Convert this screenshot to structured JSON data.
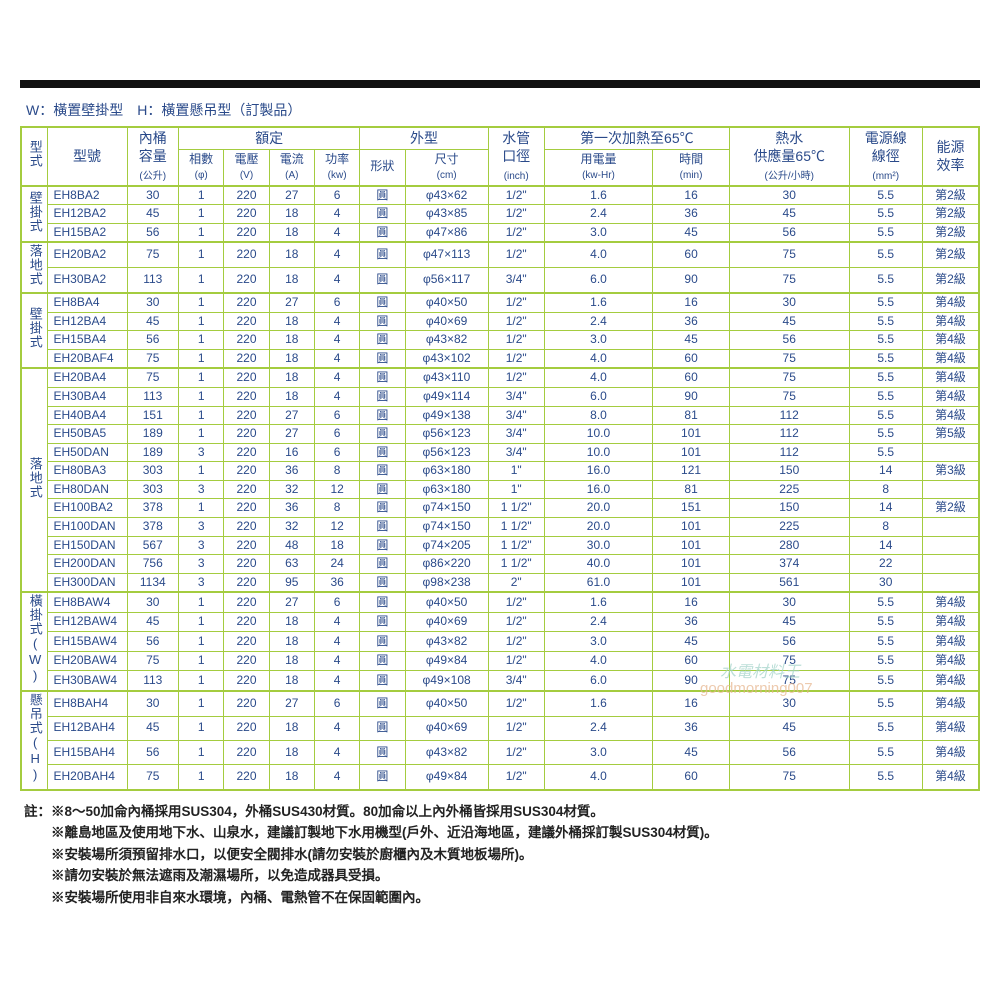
{
  "legend": "W：橫置壁掛型　H：橫置懸吊型（訂製品）",
  "colors": {
    "border": "#a4cc3f",
    "text": "#2a4a8a",
    "black_bar": "#111111",
    "note_text": "#222222"
  },
  "headers": {
    "type": "型式",
    "model": "型號",
    "capacity": "內桶\n容量",
    "capacity_unit": "(公升)",
    "rated": "額定",
    "phase": "相數",
    "phase_unit": "(φ)",
    "voltage": "電壓",
    "voltage_unit": "(V)",
    "current": "電流",
    "current_unit": "(A)",
    "power": "功率",
    "power_unit": "(kw)",
    "exterior": "外型",
    "shape": "形狀",
    "size": "尺寸",
    "size_unit": "(cm)",
    "pipe": "水管\n口徑",
    "pipe_unit": "(inch)",
    "first_heat": "第一次加熱至65℃",
    "energy_use": "用電量",
    "energy_use_unit": "(kw-Hr)",
    "time": "時間",
    "time_unit": "(min)",
    "hot_water": "熱水\n供應量65℃",
    "hot_water_unit": "(公升/小時)",
    "wire": "電源線\n線徑",
    "wire_unit": "(mm²)",
    "efficiency": "能源\n效率"
  },
  "groups": [
    {
      "label": "壁掛式",
      "rows": [
        [
          "EH8BA2",
          "30",
          "1",
          "220",
          "27",
          "6",
          "圓",
          "φ43×62",
          "1/2\"",
          "1.6",
          "16",
          "30",
          "5.5",
          "第2級"
        ],
        [
          "EH12BA2",
          "45",
          "1",
          "220",
          "18",
          "4",
          "圓",
          "φ43×85",
          "1/2\"",
          "2.4",
          "36",
          "45",
          "5.5",
          "第2級"
        ],
        [
          "EH15BA2",
          "56",
          "1",
          "220",
          "18",
          "4",
          "圓",
          "φ47×86",
          "1/2\"",
          "3.0",
          "45",
          "56",
          "5.5",
          "第2級"
        ]
      ]
    },
    {
      "label": "落地式",
      "rows": [
        [
          "EH20BA2",
          "75",
          "1",
          "220",
          "18",
          "4",
          "圓",
          "φ47×113",
          "1/2\"",
          "4.0",
          "60",
          "75",
          "5.5",
          "第2級"
        ],
        [
          "EH30BA2",
          "113",
          "1",
          "220",
          "18",
          "4",
          "圓",
          "φ56×117",
          "3/4\"",
          "6.0",
          "90",
          "75",
          "5.5",
          "第2級"
        ]
      ]
    },
    {
      "label": "壁掛式",
      "rows": [
        [
          "EH8BA4",
          "30",
          "1",
          "220",
          "27",
          "6",
          "圓",
          "φ40×50",
          "1/2\"",
          "1.6",
          "16",
          "30",
          "5.5",
          "第4級"
        ],
        [
          "EH12BA4",
          "45",
          "1",
          "220",
          "18",
          "4",
          "圓",
          "φ40×69",
          "1/2\"",
          "2.4",
          "36",
          "45",
          "5.5",
          "第4級"
        ],
        [
          "EH15BA4",
          "56",
          "1",
          "220",
          "18",
          "4",
          "圓",
          "φ43×82",
          "1/2\"",
          "3.0",
          "45",
          "56",
          "5.5",
          "第4級"
        ],
        [
          "EH20BAF4",
          "75",
          "1",
          "220",
          "18",
          "4",
          "圓",
          "φ43×102",
          "1/2\"",
          "4.0",
          "60",
          "75",
          "5.5",
          "第4級"
        ]
      ]
    },
    {
      "label": "落地式",
      "rows": [
        [
          "EH20BA4",
          "75",
          "1",
          "220",
          "18",
          "4",
          "圓",
          "φ43×110",
          "1/2\"",
          "4.0",
          "60",
          "75",
          "5.5",
          "第4級"
        ],
        [
          "EH30BA4",
          "113",
          "1",
          "220",
          "18",
          "4",
          "圓",
          "φ49×114",
          "3/4\"",
          "6.0",
          "90",
          "75",
          "5.5",
          "第4級"
        ],
        [
          "EH40BA4",
          "151",
          "1",
          "220",
          "27",
          "6",
          "圓",
          "φ49×138",
          "3/4\"",
          "8.0",
          "81",
          "112",
          "5.5",
          "第4級"
        ],
        [
          "EH50BA5",
          "189",
          "1",
          "220",
          "27",
          "6",
          "圓",
          "φ56×123",
          "3/4\"",
          "10.0",
          "101",
          "112",
          "5.5",
          "第5級"
        ],
        [
          "EH50DAN",
          "189",
          "3",
          "220",
          "16",
          "6",
          "圓",
          "φ56×123",
          "3/4\"",
          "10.0",
          "101",
          "112",
          "5.5",
          ""
        ],
        [
          "EH80BA3",
          "303",
          "1",
          "220",
          "36",
          "8",
          "圓",
          "φ63×180",
          "1\"",
          "16.0",
          "121",
          "150",
          "14",
          "第3級"
        ],
        [
          "EH80DAN",
          "303",
          "3",
          "220",
          "32",
          "12",
          "圓",
          "φ63×180",
          "1\"",
          "16.0",
          "81",
          "225",
          "8",
          ""
        ],
        [
          "EH100BA2",
          "378",
          "1",
          "220",
          "36",
          "8",
          "圓",
          "φ74×150",
          "1 1/2\"",
          "20.0",
          "151",
          "150",
          "14",
          "第2級"
        ],
        [
          "EH100DAN",
          "378",
          "3",
          "220",
          "32",
          "12",
          "圓",
          "φ74×150",
          "1 1/2\"",
          "20.0",
          "101",
          "225",
          "8",
          ""
        ],
        [
          "EH150DAN",
          "567",
          "3",
          "220",
          "48",
          "18",
          "圓",
          "φ74×205",
          "1 1/2\"",
          "30.0",
          "101",
          "280",
          "14",
          ""
        ],
        [
          "EH200DAN",
          "756",
          "3",
          "220",
          "63",
          "24",
          "圓",
          "φ86×220",
          "1 1/2\"",
          "40.0",
          "101",
          "374",
          "22",
          ""
        ],
        [
          "EH300DAN",
          "1134",
          "3",
          "220",
          "95",
          "36",
          "圓",
          "φ98×238",
          "2\"",
          "61.0",
          "101",
          "561",
          "30",
          ""
        ]
      ]
    },
    {
      "label": "橫掛式(W)",
      "rows": [
        [
          "EH8BAW4",
          "30",
          "1",
          "220",
          "27",
          "6",
          "圓",
          "φ40×50",
          "1/2\"",
          "1.6",
          "16",
          "30",
          "5.5",
          "第4級"
        ],
        [
          "EH12BAW4",
          "45",
          "1",
          "220",
          "18",
          "4",
          "圓",
          "φ40×69",
          "1/2\"",
          "2.4",
          "36",
          "45",
          "5.5",
          "第4級"
        ],
        [
          "EH15BAW4",
          "56",
          "1",
          "220",
          "18",
          "4",
          "圓",
          "φ43×82",
          "1/2\"",
          "3.0",
          "45",
          "56",
          "5.5",
          "第4級"
        ],
        [
          "EH20BAW4",
          "75",
          "1",
          "220",
          "18",
          "4",
          "圓",
          "φ49×84",
          "1/2\"",
          "4.0",
          "60",
          "75",
          "5.5",
          "第4級"
        ],
        [
          "EH30BAW4",
          "113",
          "1",
          "220",
          "18",
          "4",
          "圓",
          "φ49×108",
          "3/4\"",
          "6.0",
          "90",
          "75",
          "5.5",
          "第4級"
        ]
      ]
    },
    {
      "label": "懸吊式(H)",
      "rows": [
        [
          "EH8BAH4",
          "30",
          "1",
          "220",
          "27",
          "6",
          "圓",
          "φ40×50",
          "1/2\"",
          "1.6",
          "16",
          "30",
          "5.5",
          "第4級"
        ],
        [
          "EH12BAH4",
          "45",
          "1",
          "220",
          "18",
          "4",
          "圓",
          "φ40×69",
          "1/2\"",
          "2.4",
          "36",
          "45",
          "5.5",
          "第4級"
        ],
        [
          "EH15BAH4",
          "56",
          "1",
          "220",
          "18",
          "4",
          "圓",
          "φ43×82",
          "1/2\"",
          "3.0",
          "45",
          "56",
          "5.5",
          "第4級"
        ],
        [
          "EH20BAH4",
          "75",
          "1",
          "220",
          "18",
          "4",
          "圓",
          "φ49×84",
          "1/2\"",
          "4.0",
          "60",
          "75",
          "5.5",
          "第4級"
        ]
      ]
    }
  ],
  "notes": [
    "註：※8～50加侖內桶採用SUS304，外桶SUS430材質。80加侖以上內外桶皆採用SUS304材質。",
    "　　※離島地區及使用地下水、山泉水，建議訂製地下水用機型(戶外、近沿海地區，建議外桶採訂製SUS304材質)。",
    "　　※安裝場所須預留排水口，以便安全閥排水(請勿安裝於廚櫃內及木質地板場所)。",
    "　　※請勿安裝於無法遮雨及潮濕場所，以免造成器具受損。",
    "　　※安裝場所使用非自來水環境，內桶、電熱管不在保固範圍內。"
  ],
  "watermark1": "水電材料王",
  "watermark2": "goodmorning007"
}
